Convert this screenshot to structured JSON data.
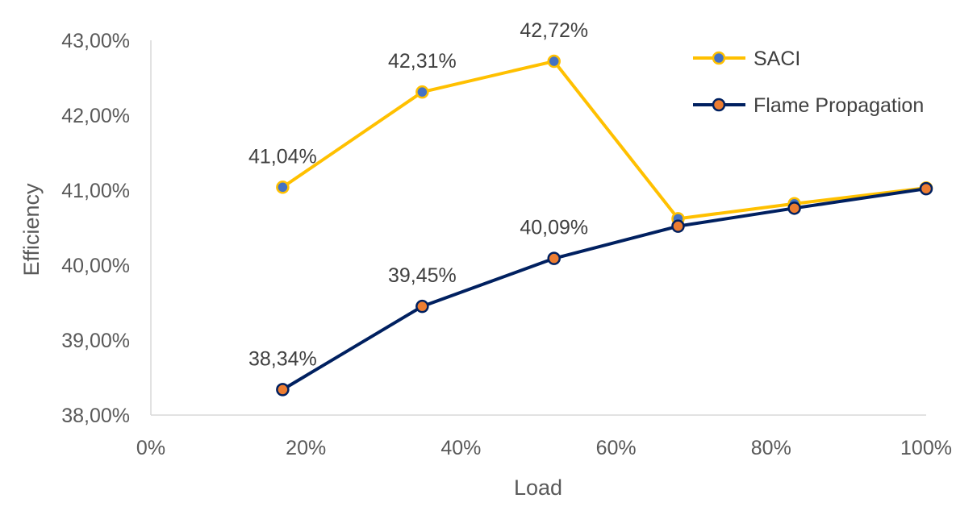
{
  "chart_data": {
    "type": "line",
    "title": "",
    "xlabel": "Load",
    "ylabel": "Efficiency",
    "xlim": [
      0,
      100
    ],
    "ylim": [
      38,
      43
    ],
    "x_ticks": [
      "0%",
      "20%",
      "40%",
      "60%",
      "80%",
      "100%"
    ],
    "y_ticks": [
      "38,00%",
      "39,00%",
      "40,00%",
      "41,00%",
      "42,00%",
      "43,00%"
    ],
    "x": [
      17,
      35,
      52,
      68,
      83,
      100
    ],
    "grid": false,
    "legend_position": "top-right",
    "series": [
      {
        "name": "SACI",
        "values": [
          41.04,
          42.31,
          42.72,
          40.62,
          40.82,
          41.03
        ],
        "data_labels": [
          "41,04%",
          "42,31%",
          "42,72%",
          "",
          "",
          ""
        ],
        "line_color": "#FFC000",
        "marker_color": "#4472C4"
      },
      {
        "name": "Flame Propagation",
        "values": [
          38.34,
          39.45,
          40.09,
          40.52,
          40.76,
          41.02
        ],
        "data_labels": [
          "38,34%",
          "39,45%",
          "40,09%",
          "",
          "",
          ""
        ],
        "line_color": "#002060",
        "marker_color": "#ED7D31"
      }
    ]
  }
}
